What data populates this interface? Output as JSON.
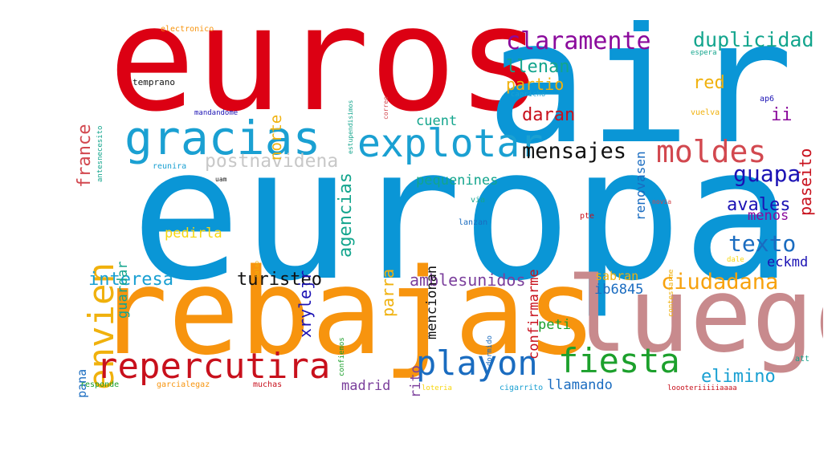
{
  "words": [
    {
      "text": "euros",
      "color": "#dc0013"
    },
    {
      "text": "air",
      "color": "#0a96d6"
    },
    {
      "text": "europa",
      "color": "#0a96d6"
    },
    {
      "text": "rebajas",
      "color": "#f7940e"
    },
    {
      "text": "luego",
      "color": "#c88a8d"
    },
    {
      "text": "gracias",
      "color": "#1aa0d2"
    },
    {
      "text": "explotar",
      "color": "#1aa0d2"
    },
    {
      "text": "moldes",
      "color": "#d2484f"
    },
    {
      "text": "claramente",
      "color": "#8b0a9c"
    },
    {
      "text": "duplicidad",
      "color": "#13a58d"
    },
    {
      "text": "envien",
      "color": "#f0b10d"
    },
    {
      "text": "mensajes",
      "color": "#111111"
    },
    {
      "text": "guapa",
      "color": "#1b12b4"
    },
    {
      "text": "postnavidena",
      "color": "#c8c8c8"
    },
    {
      "text": "repercutira",
      "color": "#c8101c"
    },
    {
      "text": "playon",
      "color": "#1a6cc0"
    },
    {
      "text": "fiesta",
      "color": "#1ca02c"
    },
    {
      "text": "ciudadana",
      "color": "#f7a20e"
    },
    {
      "text": "texto",
      "color": "#1a6cc0"
    },
    {
      "text": "avales",
      "color": "#1b12b4"
    },
    {
      "text": "interesa",
      "color": "#1aa0d2"
    },
    {
      "text": "turisteo",
      "color": "#111111"
    },
    {
      "text": "amblesunidos",
      "color": "#7b3f9c"
    },
    {
      "text": "elimino",
      "color": "#1aa0d2"
    },
    {
      "text": "madrid",
      "color": "#7b3f9c"
    },
    {
      "text": "llamando",
      "color": "#1a6cc0"
    },
    {
      "text": "france",
      "color": "#d2484f"
    },
    {
      "text": "norte",
      "color": "#f0b10d"
    },
    {
      "text": "agencias",
      "color": "#13a58d"
    },
    {
      "text": "llenan",
      "color": "#13a58d"
    },
    {
      "text": "partio",
      "color": "#f0b10d"
    },
    {
      "text": "cuent",
      "color": "#13a58d"
    },
    {
      "text": "daran",
      "color": "#c8101c"
    },
    {
      "text": "red",
      "color": "#f0b10d"
    },
    {
      "text": "ii",
      "color": "#8b0a9c"
    },
    {
      "text": "paseito",
      "color": "#c8101c"
    },
    {
      "text": "renovasen",
      "color": "#1a6cc0"
    },
    {
      "text": "pequenines",
      "color": "#13a58d"
    },
    {
      "text": "xrylejr",
      "color": "#1b12b4"
    },
    {
      "text": "guardar",
      "color": "#13a58d"
    },
    {
      "text": "pedirla",
      "color": "#f7d60e"
    },
    {
      "text": "parra",
      "color": "#f0b10d"
    },
    {
      "text": "mencionan",
      "color": "#111111"
    },
    {
      "text": "confirmarme",
      "color": "#c8101c"
    },
    {
      "text": "menos",
      "color": "#8b0a9c"
    },
    {
      "text": "eckmd",
      "color": "#1b12b4"
    },
    {
      "text": "sabran",
      "color": "#f0b10d"
    },
    {
      "text": "ib6845",
      "color": "#1a6cc0"
    },
    {
      "text": "peti",
      "color": "#1ca02c"
    },
    {
      "text": "favorito",
      "color": "#7b3f9c"
    },
    {
      "text": "campana",
      "color": "#1a6cc0"
    },
    {
      "text": "electronico",
      "color": "#f7940e"
    },
    {
      "text": "temprano",
      "color": "#111111"
    },
    {
      "text": "antesnecesito",
      "color": "#13a58d"
    },
    {
      "text": "estupendisimos",
      "color": "#13a58d"
    },
    {
      "text": "correo",
      "color": "#d2484f"
    },
    {
      "text": "mandandome",
      "color": "#1b12b4"
    },
    {
      "text": "capricho",
      "color": "#1aa0d2"
    },
    {
      "text": "espera",
      "color": "#13a58d"
    },
    {
      "text": "ap6",
      "color": "#1b12b4"
    },
    {
      "text": "vuelva",
      "color": "#f0b10d"
    },
    {
      "text": "reunira",
      "color": "#1aa0d2"
    },
    {
      "text": "uam",
      "color": "#111111"
    },
    {
      "text": "via",
      "color": "#13a58d"
    },
    {
      "text": "lanzan",
      "color": "#1a6cc0"
    },
    {
      "text": "pte",
      "color": "#c8101c"
    },
    {
      "text": "novia",
      "color": "#d2484f"
    },
    {
      "text": "contestarme",
      "color": "#f0b10d"
    },
    {
      "text": "dale",
      "color": "#f7d60e"
    },
    {
      "text": "salao",
      "color": "#f0b10d"
    },
    {
      "text": "confiemos",
      "color": "#1ca02c"
    },
    {
      "text": "dormido",
      "color": "#1a6cc0"
    },
    {
      "text": "att",
      "color": "#13a58d"
    },
    {
      "text": "responde",
      "color": "#1ca02c"
    },
    {
      "text": "garcialegaz",
      "color": "#f7940e"
    },
    {
      "text": "muchas",
      "color": "#c8101c"
    },
    {
      "text": "loteria",
      "color": "#f7d60e"
    },
    {
      "text": "cigarrito",
      "color": "#1aa0d2"
    },
    {
      "text": "loooteriiiiiaaaa",
      "color": "#c8101c"
    }
  ]
}
